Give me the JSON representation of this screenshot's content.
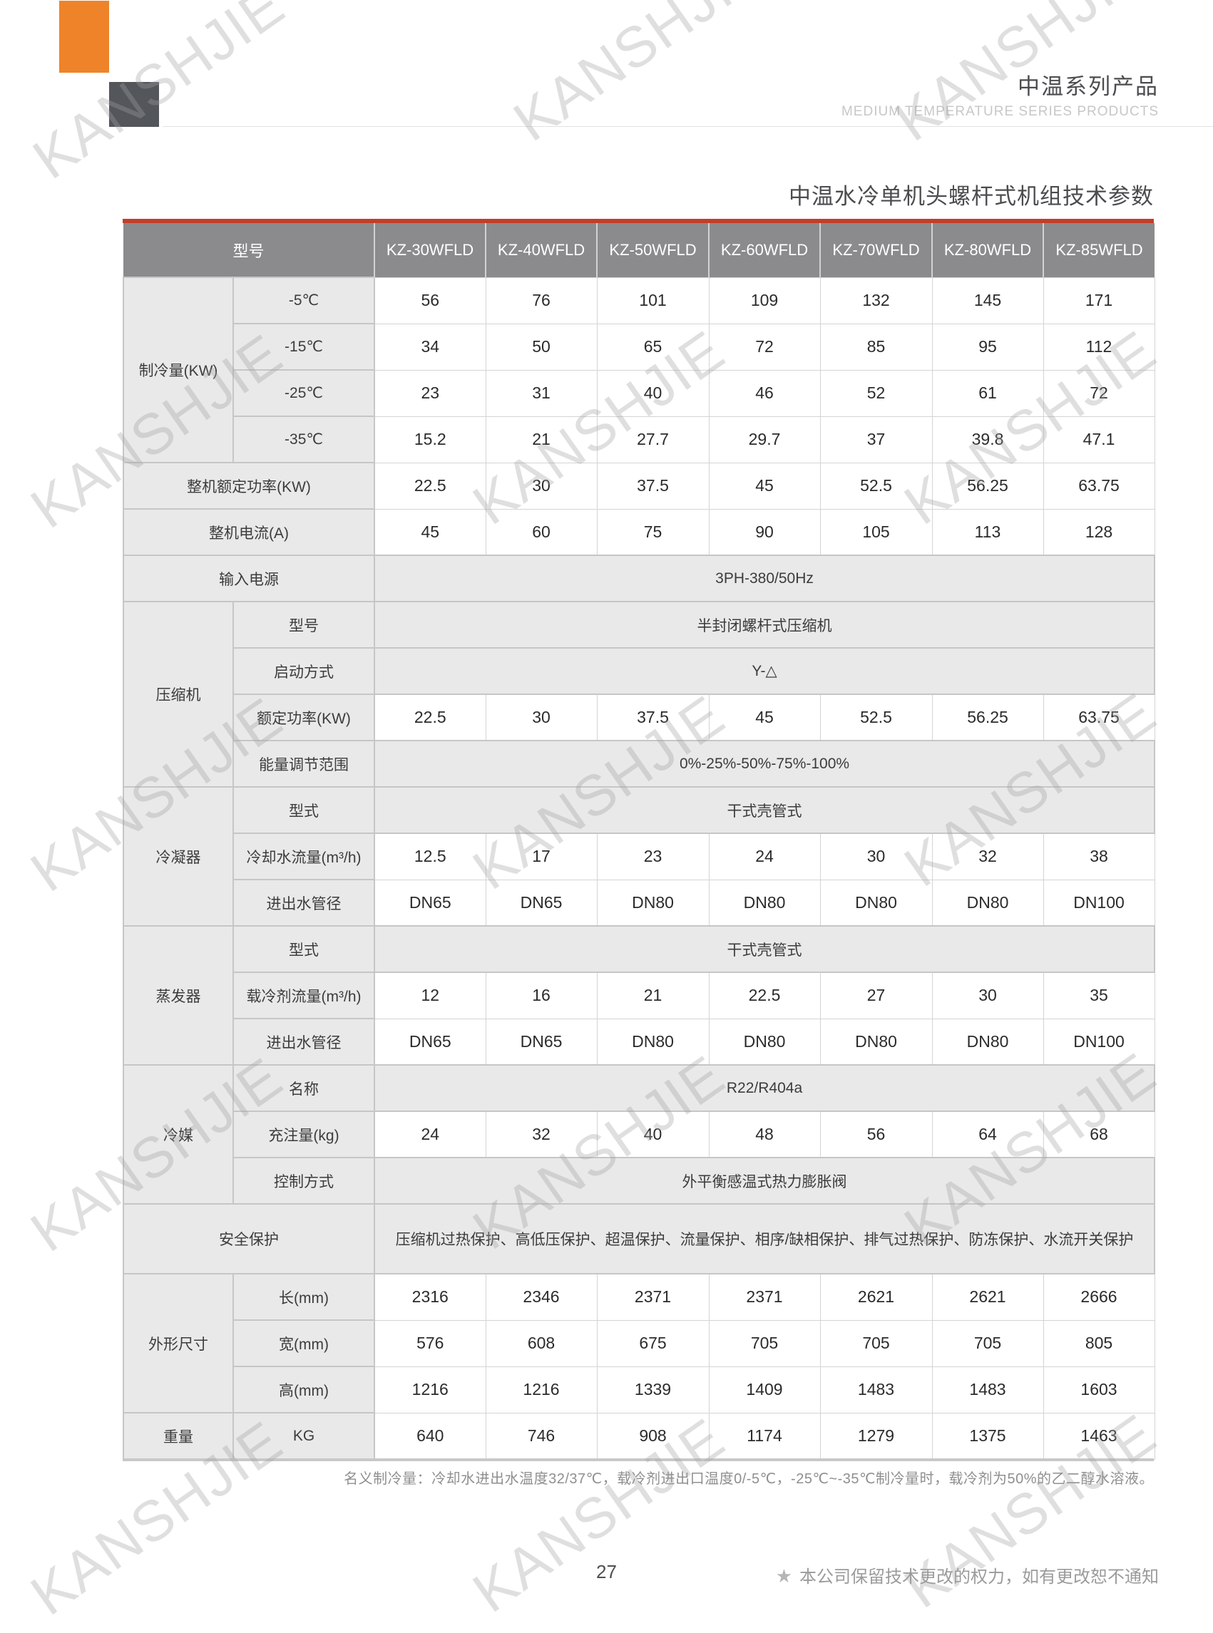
{
  "page": {
    "brand_title_cn": "中温系列产品",
    "brand_title_en": "MEDIUM TEMPERATURE SERIES PRODUCTS",
    "doc_title": "中温水冷单机头螺杆式机组技术参数",
    "watermark_text": "KANSHJIE",
    "table_note": "名义制冷量：冷却水进出水温度32/37℃，载冷剂进出口温度0/-5℃，-25℃~-35℃制冷量时，载冷剂为50%的乙二醇水溶液。",
    "page_number": "27",
    "footer_star": "★",
    "footer_right": "本公司保留技术更改的权力，如有更改恕不通知"
  },
  "colors": {
    "accent_orange": "#ef8329",
    "dark_square": "#53565a",
    "table_top_bar_red": "#c23e29",
    "header_gray": "#8b8b8d",
    "label_cell_gray": "#e9e9e9"
  },
  "table": {
    "header": [
      "型号",
      "KZ-30WFLD",
      "KZ-40WFLD",
      "KZ-50WFLD",
      "KZ-60WFLD",
      "KZ-70WFLD",
      "KZ-80WFLD",
      "KZ-85WFLD"
    ],
    "rows": [
      {
        "type": "group",
        "group": "制冷量(KW)",
        "span": 4,
        "label": "-5℃",
        "values": [
          "56",
          "76",
          "101",
          "109",
          "132",
          "145",
          "171"
        ]
      },
      {
        "type": "sub",
        "label": "-15℃",
        "values": [
          "34",
          "50",
          "65",
          "72",
          "85",
          "95",
          "112"
        ]
      },
      {
        "type": "sub",
        "label": "-25℃",
        "values": [
          "23",
          "31",
          "40",
          "46",
          "52",
          "61",
          "72"
        ]
      },
      {
        "type": "sub",
        "label": "-35℃",
        "values": [
          "15.2",
          "21",
          "27.7",
          "29.7",
          "37",
          "39.8",
          "47.1"
        ]
      },
      {
        "type": "wide",
        "label": "整机额定功率(KW)",
        "values": [
          "22.5",
          "30",
          "37.5",
          "45",
          "52.5",
          "56.25",
          "63.75"
        ]
      },
      {
        "type": "wide",
        "label": "整机电流(A)",
        "values": [
          "45",
          "60",
          "75",
          "90",
          "105",
          "113",
          "128"
        ]
      },
      {
        "type": "wide",
        "label": "输入电源",
        "merged": "3PH-380/50Hz"
      },
      {
        "type": "group",
        "group": "压缩机",
        "span": 4,
        "label": "型号",
        "merged": "半封闭螺杆式压缩机"
      },
      {
        "type": "sub",
        "label": "启动方式",
        "merged": "Y-△"
      },
      {
        "type": "sub",
        "label": "额定功率(KW)",
        "values": [
          "22.5",
          "30",
          "37.5",
          "45",
          "52.5",
          "56.25",
          "63.75"
        ]
      },
      {
        "type": "sub",
        "label": "能量调节范围",
        "merged": "0%-25%-50%-75%-100%"
      },
      {
        "type": "group",
        "group": "冷凝器",
        "span": 3,
        "label": "型式",
        "merged": "干式壳管式"
      },
      {
        "type": "sub",
        "label": "冷却水流量(m³/h)",
        "values": [
          "12.5",
          "17",
          "23",
          "24",
          "30",
          "32",
          "38"
        ]
      },
      {
        "type": "sub",
        "label": "进出水管径",
        "values": [
          "DN65",
          "DN65",
          "DN80",
          "DN80",
          "DN80",
          "DN80",
          "DN100"
        ]
      },
      {
        "type": "group",
        "group": "蒸发器",
        "span": 3,
        "label": "型式",
        "merged": "干式壳管式"
      },
      {
        "type": "sub",
        "label": "载冷剂流量(m³/h)",
        "values": [
          "12",
          "16",
          "21",
          "22.5",
          "27",
          "30",
          "35"
        ]
      },
      {
        "type": "sub",
        "label": "进出水管径",
        "values": [
          "DN65",
          "DN65",
          "DN80",
          "DN80",
          "DN80",
          "DN80",
          "DN100"
        ]
      },
      {
        "type": "group",
        "group": "冷媒",
        "span": 3,
        "label": "名称",
        "merged": "R22/R404a"
      },
      {
        "type": "sub",
        "label": "充注量(kg)",
        "values": [
          "24",
          "32",
          "40",
          "48",
          "56",
          "64",
          "68"
        ]
      },
      {
        "type": "sub",
        "label": "控制方式",
        "merged": "外平衡感温式热力膨胀阀"
      },
      {
        "type": "wide",
        "label": "安全保护",
        "merged": "压缩机过热保护、高低压保护、超温保护、流量保护、相序/缺相保护、排气过热保护、防冻保护、水流开关保护",
        "tall": true
      },
      {
        "type": "group",
        "group": "外形尺寸",
        "span": 3,
        "label": "长(mm)",
        "values": [
          "2316",
          "2346",
          "2371",
          "2371",
          "2621",
          "2621",
          "2666"
        ]
      },
      {
        "type": "sub",
        "label": "宽(mm)",
        "values": [
          "576",
          "608",
          "675",
          "705",
          "705",
          "705",
          "805"
        ]
      },
      {
        "type": "sub",
        "label": "高(mm)",
        "values": [
          "1216",
          "1216",
          "1339",
          "1409",
          "1483",
          "1483",
          "1603"
        ]
      },
      {
        "type": "group",
        "group": "重量",
        "span": 1,
        "label": "KG",
        "values": [
          "640",
          "746",
          "908",
          "1174",
          "1279",
          "1375",
          "1463"
        ]
      }
    ]
  }
}
